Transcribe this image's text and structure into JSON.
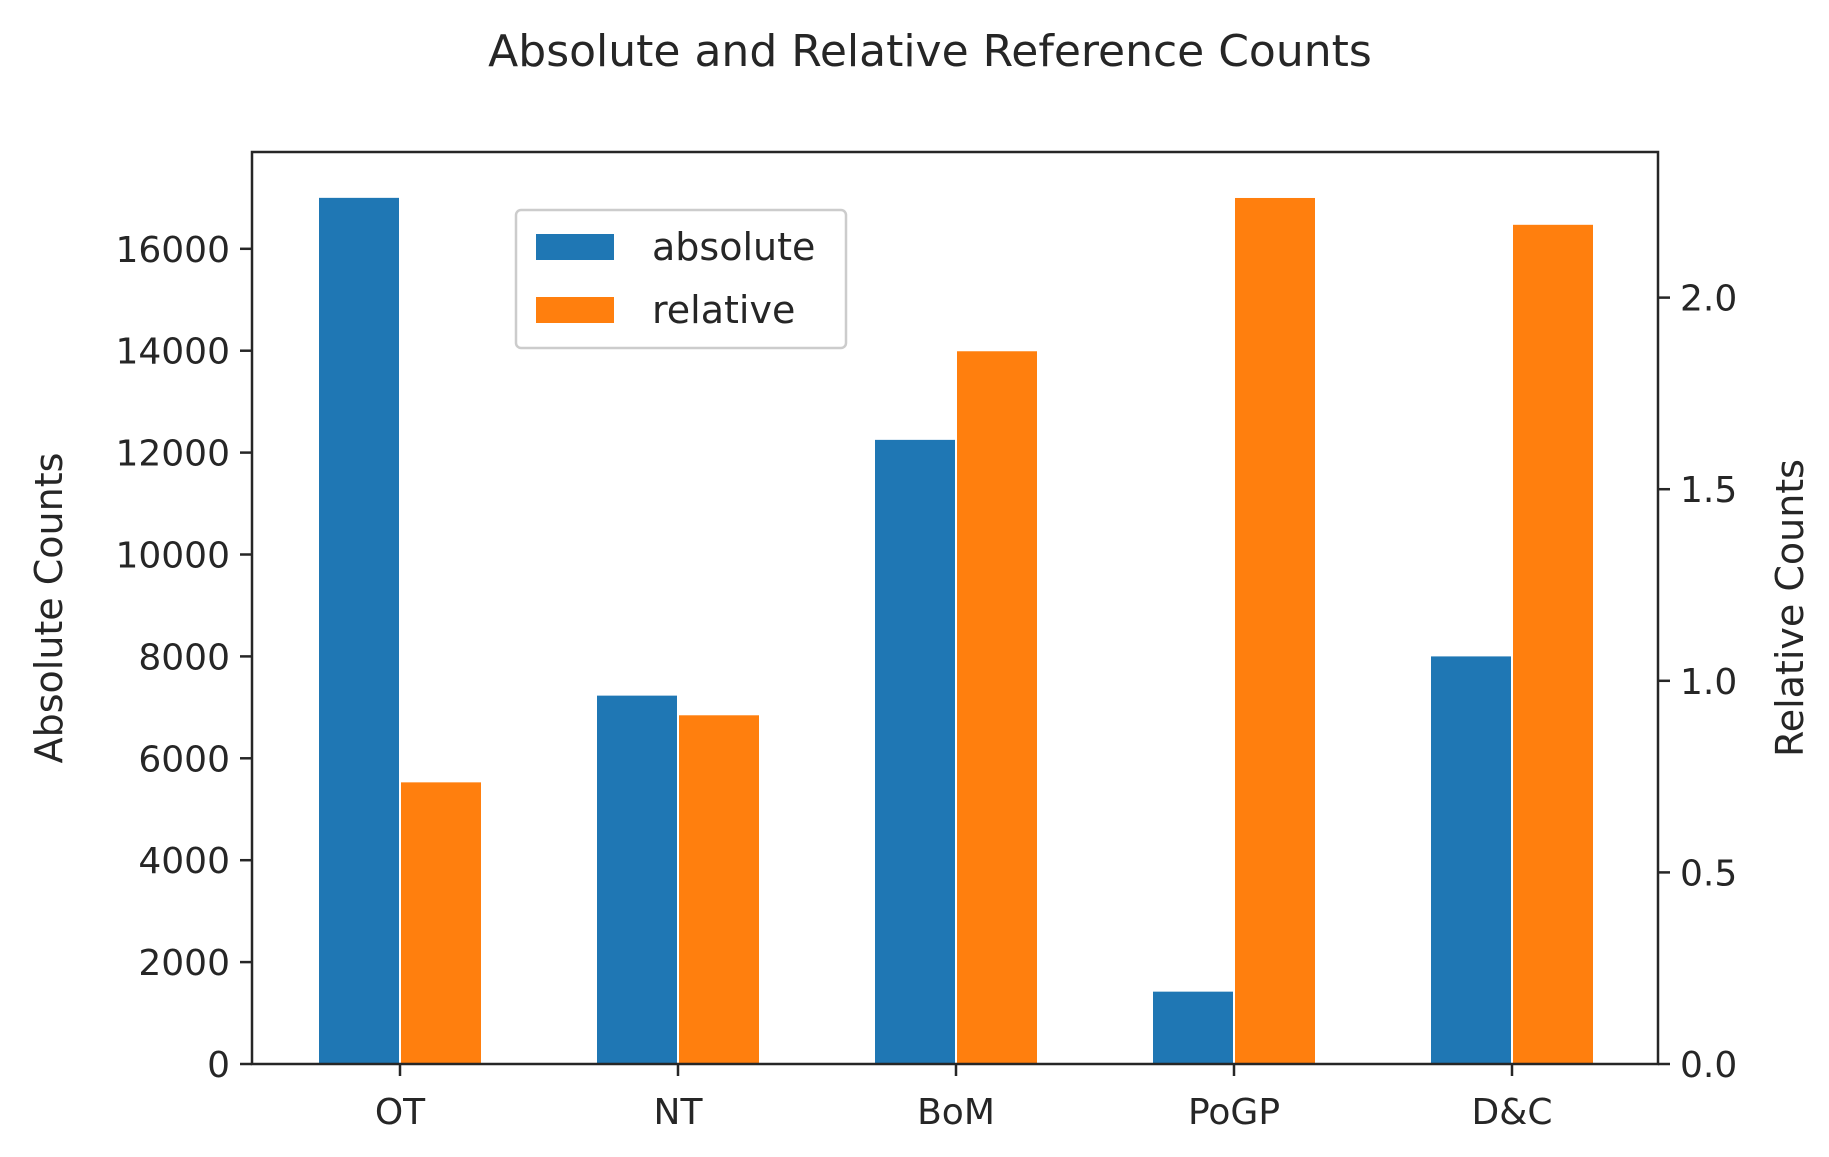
{
  "chart_data": {
    "type": "bar",
    "title": "Absolute and Relative Reference Counts",
    "categories": [
      "OT",
      "NT",
      "BoM",
      "PoGP",
      "D&C"
    ],
    "y_left": {
      "label": "Absolute Counts",
      "lim": [
        0,
        17900
      ],
      "ticks": [
        "0",
        "2000",
        "4000",
        "6000",
        "8000",
        "10000",
        "12000",
        "14000",
        "16000"
      ]
    },
    "y_right": {
      "label": "Relative Counts",
      "lim": [
        0,
        2.38
      ],
      "ticks": [
        "0.0",
        "0.5",
        "1.0",
        "1.5",
        "2.0"
      ]
    },
    "series": [
      {
        "name": "absolute",
        "axis": "left",
        "color": "#1f77b4",
        "values": [
          17000,
          7230,
          12250,
          1420,
          8000
        ]
      },
      {
        "name": "relative",
        "axis": "right",
        "color": "#ff7f0e",
        "values": [
          0.735,
          0.91,
          1.86,
          2.26,
          2.19
        ]
      }
    ],
    "legend_position": "upper-center",
    "grid": false
  }
}
